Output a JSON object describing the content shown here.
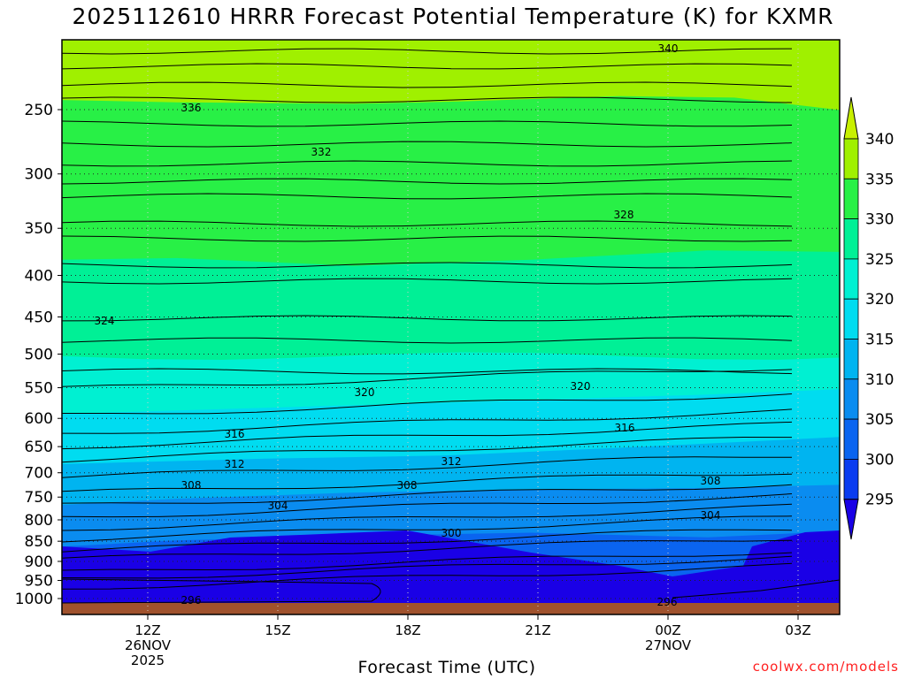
{
  "chart_data": {
    "type": "contour",
    "title": "2025112610 HRRR Forecast Potential Temperature (K) for KXMR",
    "xlabel": "Forecast Time (UTC)",
    "ylabel": "",
    "y_axis": "pressure (hPa), reversed log-pressure",
    "y_ticks": [
      250,
      300,
      350,
      400,
      450,
      500,
      550,
      600,
      650,
      700,
      750,
      800,
      850,
      900,
      950,
      1000
    ],
    "y_tick_labels": [
      "250",
      "300",
      "350",
      "400",
      "450",
      "500",
      "550",
      "600",
      "650",
      "700",
      "750",
      "800",
      "850",
      "900",
      "950",
      "1000"
    ],
    "x_ticks": [
      {
        "hour": 12,
        "lines": [
          "12Z",
          "26NOV",
          "2025"
        ]
      },
      {
        "hour": 15,
        "lines": [
          "15Z"
        ]
      },
      {
        "hour": 18,
        "lines": [
          "18Z"
        ]
      },
      {
        "hour": 21,
        "lines": [
          "21Z"
        ]
      },
      {
        "hour": 24,
        "lines": [
          "00Z",
          "27NOV"
        ]
      },
      {
        "hour": 27,
        "lines": [
          "03Z"
        ]
      }
    ],
    "grid": "dotted",
    "colorbar": {
      "position": "right",
      "levels": [
        295,
        300,
        305,
        310,
        315,
        320,
        325,
        330,
        335,
        340
      ],
      "labels": [
        "340",
        "335",
        "330",
        "325",
        "320",
        "315",
        "310",
        "305",
        "300",
        "295"
      ],
      "colors": [
        "#1a00e6",
        "#0a3cf0",
        "#0a64f0",
        "#0a8cf0",
        "#00b4f0",
        "#00dcf0",
        "#00f0d2",
        "#00f096",
        "#28f046",
        "#a0f000",
        "#c8f000"
      ]
    },
    "contour_labels": [
      "340",
      "336",
      "332",
      "328",
      "324",
      "320",
      "320",
      "316",
      "316",
      "312",
      "312",
      "308",
      "308",
      "308",
      "304",
      "304",
      "300",
      "296",
      "296"
    ],
    "contour_interval": 4,
    "terrain_color": "#a0522d"
  },
  "credit": "coolwx.com/models"
}
